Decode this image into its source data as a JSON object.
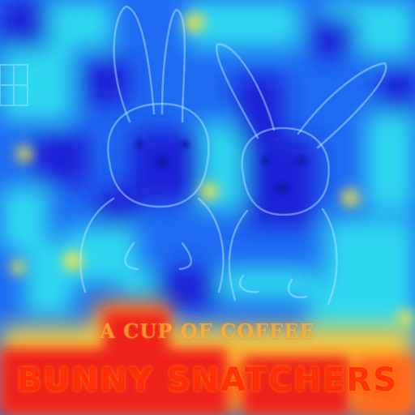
{
  "artwork": {
    "subject": "two-rabbits-cover-heatmap-overlay",
    "colors": {
      "deep_blue": "#1a22d8",
      "blue": "#1f6bf2",
      "cyan": "#2fd7f0",
      "yellow": "#f2e64a",
      "orange": "#ff8a1e",
      "red": "#f0201a"
    }
  },
  "cover": {
    "tagline": "A CUP OF COFFEE",
    "title": "BUNNY SNATCHERS"
  }
}
